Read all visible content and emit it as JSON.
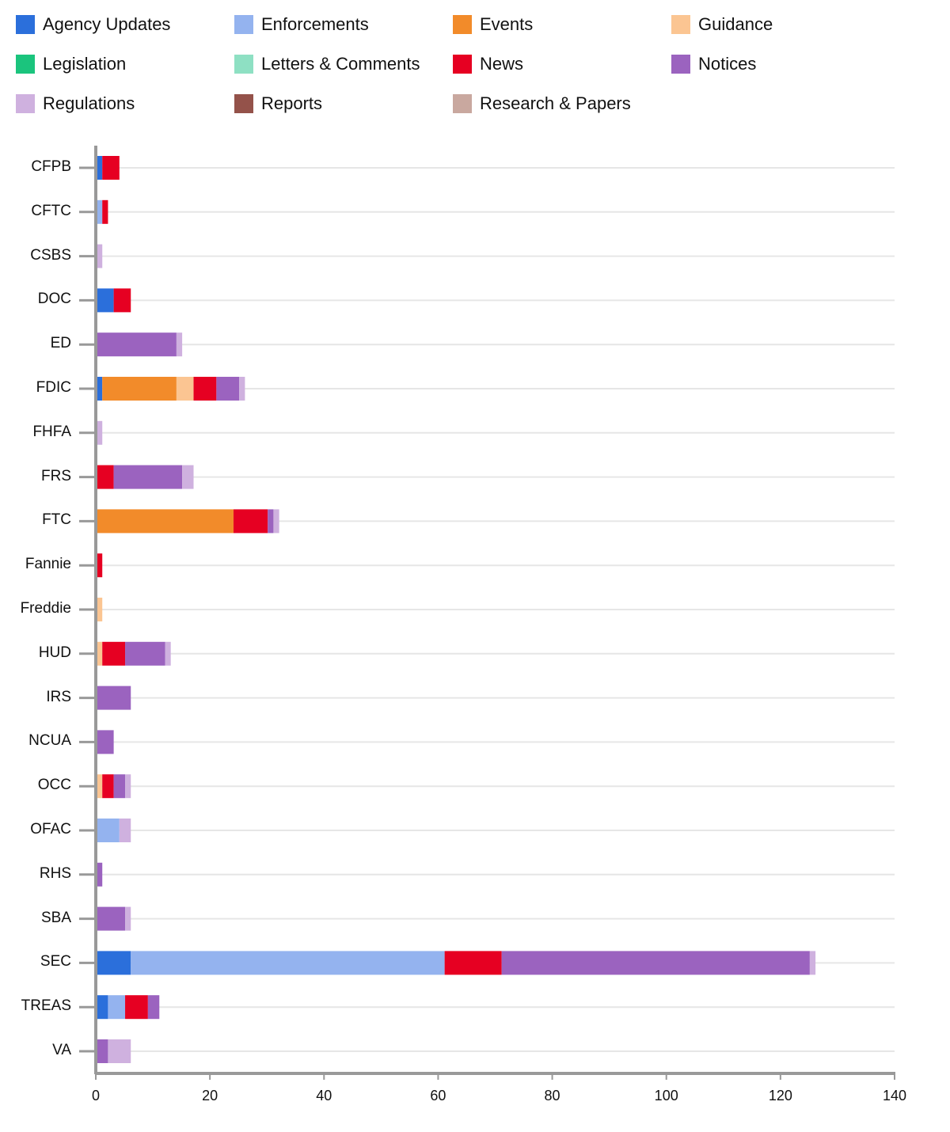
{
  "chart_data": {
    "type": "bar",
    "orientation": "horizontal",
    "stacked": true,
    "xlim": [
      0,
      140
    ],
    "xticks": [
      0,
      20,
      40,
      60,
      80,
      100,
      120,
      140
    ],
    "series_names": [
      "Agency Updates",
      "Enforcements",
      "Events",
      "Guidance",
      "Legislation",
      "Letters & Comments",
      "News",
      "Notices",
      "Regulations",
      "Reports",
      "Research & Papers"
    ],
    "colors": [
      "#2b6fdb",
      "#94b3ef",
      "#f28b2a",
      "#fbc592",
      "#1bc47d",
      "#8ee0c3",
      "#e60022",
      "#9b63bf",
      "#cfb1df",
      "#94524a",
      "#c9a89f"
    ],
    "categories": [
      "CFPB",
      "CFTC",
      "CSBS",
      "DOC",
      "ED",
      "FDIC",
      "FHFA",
      "FRS",
      "FTC",
      "Fannie",
      "Freddie",
      "HUD",
      "IRS",
      "NCUA",
      "OCC",
      "OFAC",
      "RHS",
      "SBA",
      "SEC",
      "TREAS",
      "VA"
    ],
    "values": [
      [
        1,
        0,
        0,
        0,
        0,
        0,
        3,
        0,
        0,
        0,
        0
      ],
      [
        0,
        1,
        0,
        0,
        0,
        0,
        1,
        0,
        0,
        0,
        0
      ],
      [
        0,
        0,
        0,
        0,
        0,
        0,
        0,
        0,
        1,
        0,
        0
      ],
      [
        3,
        0,
        0,
        0,
        0,
        0,
        3,
        0,
        0,
        0,
        0
      ],
      [
        0,
        0,
        0,
        0,
        0,
        0,
        0,
        14,
        1,
        0,
        0
      ],
      [
        1,
        0,
        13,
        3,
        0,
        0,
        4,
        4,
        1,
        0,
        0
      ],
      [
        0,
        0,
        0,
        0,
        0,
        0,
        0,
        0,
        1,
        0,
        0
      ],
      [
        0,
        0,
        0,
        0,
        0,
        0,
        3,
        12,
        2,
        0,
        0
      ],
      [
        0,
        0,
        24,
        0,
        0,
        0,
        6,
        1,
        1,
        0,
        0
      ],
      [
        0,
        0,
        0,
        0,
        0,
        0,
        1,
        0,
        0,
        0,
        0
      ],
      [
        0,
        0,
        0,
        1,
        0,
        0,
        0,
        0,
        0,
        0,
        0
      ],
      [
        0,
        0,
        0,
        1,
        0,
        0,
        4,
        7,
        1,
        0,
        0
      ],
      [
        0,
        0,
        0,
        0,
        0,
        0,
        0,
        6,
        0,
        0,
        0
      ],
      [
        0,
        0,
        0,
        0,
        0,
        0,
        0,
        3,
        0,
        0,
        0
      ],
      [
        0,
        0,
        0,
        1,
        0,
        0,
        2,
        2,
        1,
        0,
        0
      ],
      [
        0,
        4,
        0,
        0,
        0,
        0,
        0,
        0,
        2,
        0,
        0
      ],
      [
        0,
        0,
        0,
        0,
        0,
        0,
        0,
        1,
        0,
        0,
        0
      ],
      [
        0,
        0,
        0,
        0,
        0,
        0,
        0,
        5,
        1,
        0,
        0
      ],
      [
        6,
        55,
        0,
        0,
        0,
        0,
        10,
        54,
        1,
        0,
        0
      ],
      [
        2,
        3,
        0,
        0,
        0,
        0,
        4,
        2,
        0,
        0,
        0
      ],
      [
        0,
        0,
        0,
        0,
        0,
        0,
        0,
        2,
        4,
        0,
        0
      ]
    ]
  }
}
